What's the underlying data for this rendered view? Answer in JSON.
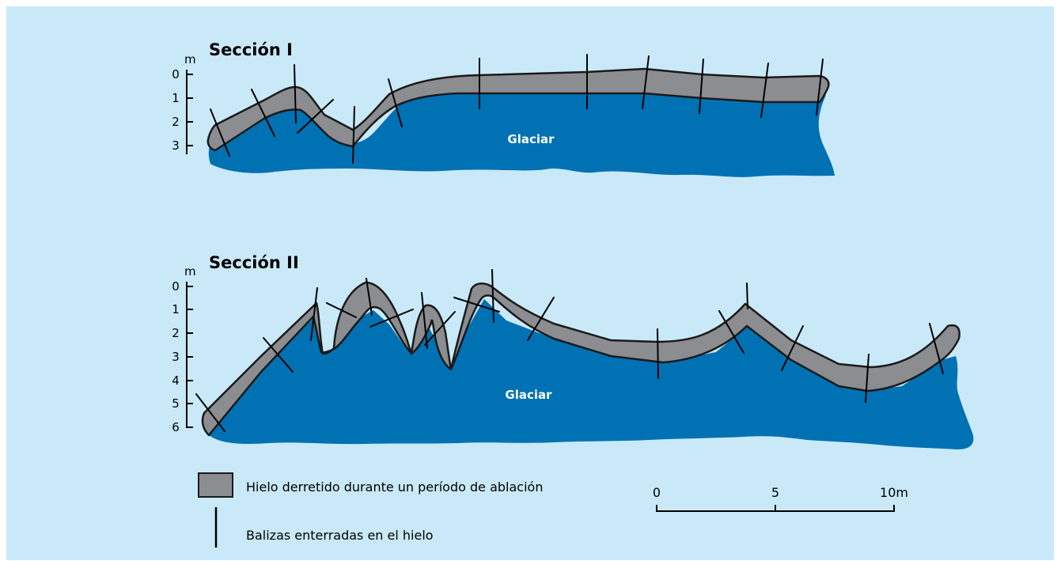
{
  "colors": {
    "background": "#c9e9f8",
    "glacier": "#0071b3",
    "melted_ice": "#8c8d90",
    "outline": "#1a1a1a"
  },
  "section1": {
    "title": "Sección I",
    "unit": "m",
    "ticks": [
      "0",
      "1",
      "2",
      "3"
    ],
    "glacier_label": "Glaciar"
  },
  "section2": {
    "title": "Sección II",
    "unit": "m",
    "ticks": [
      "0",
      "1",
      "2",
      "3",
      "4",
      "5",
      "6"
    ],
    "glacier_label": "Glaciar"
  },
  "legend": {
    "melted_ice_label": "Hielo derretido durante un período de ablación",
    "stakes_label": "Balizas enterradas en el hielo"
  },
  "scale_bar": {
    "labels": [
      "0",
      "5",
      "10m"
    ]
  }
}
